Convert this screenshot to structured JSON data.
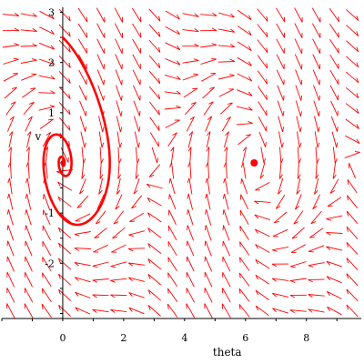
{
  "chart_data": {
    "type": "line",
    "title": "",
    "xlabel": "theta",
    "ylabel": "v",
    "xlim": [
      -2,
      9.8
    ],
    "ylim": [
      -3.1,
      3.1
    ],
    "x_ticks": [
      {
        "value": 0,
        "label": "0"
      },
      {
        "value": 2,
        "label": "2"
      },
      {
        "value": 4,
        "label": "4"
      },
      {
        "value": 6,
        "label": "6"
      },
      {
        "value": 8,
        "label": "8"
      }
    ],
    "y_ticks": [
      {
        "value": 3,
        "label": "3"
      },
      {
        "value": 2,
        "label": "2"
      },
      {
        "value": 1,
        "label": "1"
      },
      {
        "value": -1,
        "label": "-1"
      },
      {
        "value": -2,
        "label": "-2"
      }
    ],
    "grid": false,
    "direction_field": {
      "description": "direction field for a damped pendulum, arrows drawn along the equations",
      "equations": {
        "dtheta_dt": "v",
        "dv_dt": "-0.6*v - 1.6*sin(theta)"
      },
      "color": "#ff0000"
    },
    "trajectory": {
      "color": "#ff0000",
      "initial_condition": {
        "theta": 0,
        "v": 2.5
      },
      "spiral_center": {
        "theta": 6.283,
        "v": 0
      }
    }
  }
}
